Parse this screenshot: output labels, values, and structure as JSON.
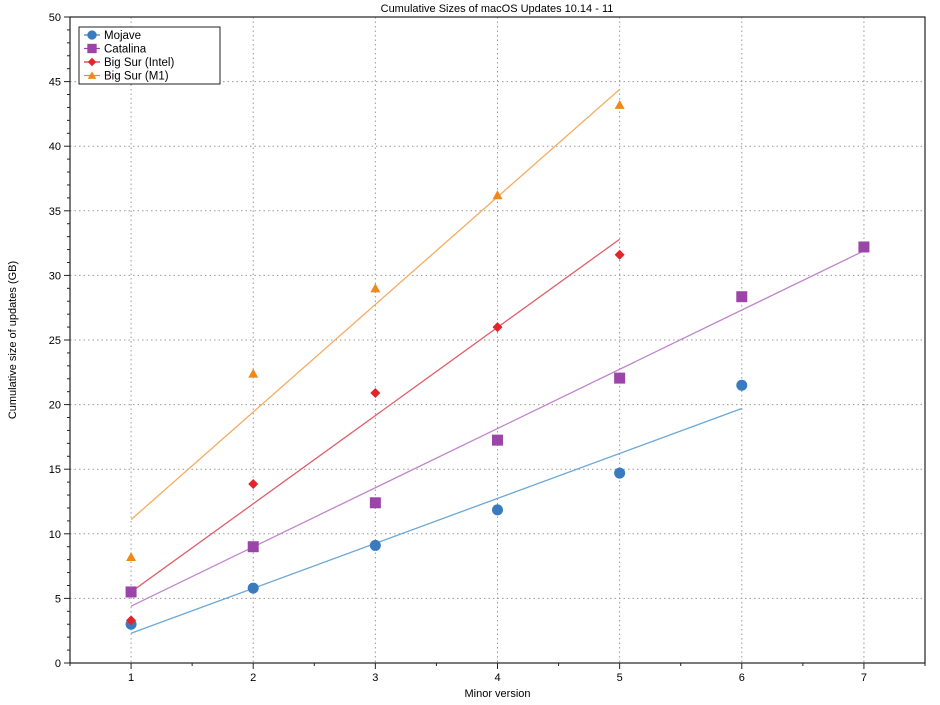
{
  "chart_data": {
    "type": "scatter",
    "title": "Cumulative Sizes of macOS Updates 10.14  - 11",
    "xlabel": "Minor version",
    "ylabel": "Cumulative size of updates (GB)",
    "xlim": [
      0.5,
      7.5
    ],
    "ylim": [
      0,
      50
    ],
    "xticks": [
      1,
      2,
      3,
      4,
      5,
      6,
      7
    ],
    "yticks": [
      0,
      5,
      10,
      15,
      20,
      25,
      30,
      35,
      40,
      45,
      50
    ],
    "grid": true,
    "legend_position": "upper left",
    "series": [
      {
        "name": "Mojave",
        "marker": "circle",
        "color": "#3a7bbf",
        "fit_color": "#6aa8d8",
        "x": [
          1,
          2,
          3,
          4,
          5,
          6
        ],
        "values": [
          3.0,
          5.8,
          9.1,
          11.85,
          14.7,
          21.5
        ],
        "fit_line": {
          "x": [
            1,
            6
          ],
          "y": [
            2.3,
            19.7
          ]
        }
      },
      {
        "name": "Catalina",
        "marker": "square",
        "color": "#9b45a8",
        "fit_color": "#c184cc",
        "x": [
          1,
          2,
          3,
          4,
          5,
          6,
          7
        ],
        "values": [
          5.5,
          9.0,
          12.4,
          17.25,
          22.05,
          28.35,
          32.2
        ],
        "fit_line": {
          "x": [
            1,
            7
          ],
          "y": [
            4.4,
            31.9
          ]
        }
      },
      {
        "name": "Big Sur (Intel)",
        "marker": "diamond",
        "color": "#e0262a",
        "fit_color": "#e0606a",
        "x": [
          1,
          2,
          3,
          4,
          5
        ],
        "values": [
          3.3,
          13.85,
          20.9,
          26.0,
          31.6
        ],
        "fit_line": {
          "x": [
            1,
            5
          ],
          "y": [
            5.5,
            32.8
          ]
        }
      },
      {
        "name": "Big Sur (M1)",
        "marker": "triangle",
        "color": "#f0891a",
        "fit_color": "#f2ae60",
        "x": [
          1,
          2,
          3,
          4,
          5
        ],
        "values": [
          8.2,
          22.4,
          29.0,
          36.2,
          43.2
        ],
        "fit_line": {
          "x": [
            1,
            5
          ],
          "y": [
            11.1,
            44.4
          ]
        }
      }
    ]
  }
}
